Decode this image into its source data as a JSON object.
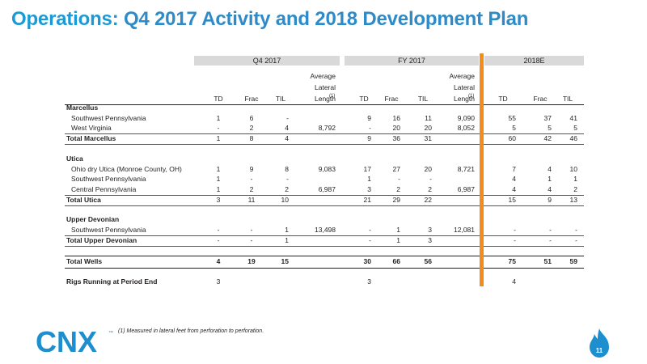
{
  "title": {
    "part1": "Operations:",
    "part2": "Q4 2017 Activity and 2018 Development Plan"
  },
  "groups": {
    "q4": "Q4 2017",
    "fy": "FY 2017",
    "e": "2018E"
  },
  "headers": {
    "td": "TD",
    "frac": "Frac",
    "til": "TIL",
    "avg_line1": "Average",
    "avg_line2": "Lateral",
    "avg_line3": "Length",
    "sup": "(1)"
  },
  "rows": [
    {
      "label": "Marcellus",
      "kind": "section",
      "v": [
        "",
        "",
        "",
        "",
        "",
        "",
        "",
        "",
        "",
        "",
        ""
      ]
    },
    {
      "label": "Southwest Pennsylvania",
      "kind": "item",
      "v": [
        "1",
        "6",
        "-",
        "",
        "9",
        "16",
        "11",
        "9,090",
        "55",
        "37",
        "41"
      ]
    },
    {
      "label": "West Virginia",
      "kind": "item",
      "v": [
        "-",
        "2",
        "4",
        "8,792",
        "-",
        "20",
        "20",
        "8,052",
        "5",
        "5",
        "5"
      ]
    },
    {
      "label": "Total Marcellus",
      "kind": "total",
      "v": [
        "1",
        "8",
        "4",
        "",
        "9",
        "36",
        "31",
        "",
        "60",
        "42",
        "46"
      ]
    },
    {
      "label": "Utica",
      "kind": "section",
      "v": [
        "",
        "",
        "",
        "",
        "",
        "",
        "",
        "",
        "",
        "",
        ""
      ]
    },
    {
      "label": "Ohio dry Utica (Monroe County, OH)",
      "kind": "item",
      "v": [
        "1",
        "9",
        "8",
        "9,083",
        "17",
        "27",
        "20",
        "8,721",
        "7",
        "4",
        "10"
      ]
    },
    {
      "label": "Southwest Pennsylvania",
      "kind": "item",
      "v": [
        "1",
        "-",
        "-",
        "",
        "1",
        "-",
        "-",
        "",
        "4",
        "1",
        "1"
      ]
    },
    {
      "label": "Central Pennsylvania",
      "kind": "item",
      "v": [
        "1",
        "2",
        "2",
        "6,987",
        "3",
        "2",
        "2",
        "6,987",
        "4",
        "4",
        "2"
      ]
    },
    {
      "label": "Total Utica",
      "kind": "total",
      "v": [
        "3",
        "11",
        "10",
        "",
        "21",
        "29",
        "22",
        "",
        "15",
        "9",
        "13"
      ]
    },
    {
      "label": "Upper Devonian",
      "kind": "section",
      "v": [
        "",
        "",
        "",
        "",
        "",
        "",
        "",
        "",
        "",
        "",
        ""
      ]
    },
    {
      "label": "Southwest Pennsylvania",
      "kind": "item",
      "v": [
        "-",
        "-",
        "1",
        "13,498",
        "-",
        "1",
        "3",
        "12,081",
        "-",
        "-",
        "-"
      ]
    },
    {
      "label": "Total Upper Devonian",
      "kind": "total",
      "v": [
        "-",
        "-",
        "1",
        "",
        "-",
        "1",
        "3",
        "",
        "-",
        "-",
        "-"
      ]
    },
    {
      "label": "Total Wells",
      "kind": "grand",
      "v": [
        "4",
        "19",
        "15",
        "",
        "30",
        "66",
        "56",
        "",
        "75",
        "51",
        "59"
      ]
    },
    {
      "label": "Rigs Running at Period End",
      "kind": "rigs",
      "v": [
        "3",
        "",
        "",
        "",
        "3",
        "",
        "",
        "",
        "4",
        "",
        ""
      ]
    }
  ],
  "footnote": "(1)   Measured in lateral feet from perforation to perforation.",
  "logo": {
    "text": "CNX",
    "tm": "™"
  },
  "page_number": "11",
  "colors": {
    "title_blue": "#1a9ad6",
    "orange": "#f28c1c",
    "logo_blue": "#1e8fce",
    "group_gray": "#d9d9d9"
  }
}
